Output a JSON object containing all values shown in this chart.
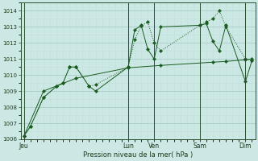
{
  "bg_color": "#cce8e4",
  "grid_color_major": "#aaccc8",
  "grid_color_minor": "#c0deda",
  "line_color": "#1a5c20",
  "xlabel": "Pression niveau de la mer( hPa )",
  "ylim": [
    1006,
    1014.5
  ],
  "yticks": [
    1006,
    1007,
    1008,
    1009,
    1010,
    1011,
    1012,
    1013,
    1014
  ],
  "xtick_labels": [
    "Jeu",
    "Lun",
    "Ven",
    "Sam",
    "Dim"
  ],
  "xtick_pos": [
    0,
    16,
    20,
    27,
    34
  ],
  "vlines_x": [
    0,
    16,
    20,
    27,
    34
  ],
  "xlim": [
    -0.5,
    35.5
  ],
  "series1_x": [
    0,
    1,
    3,
    5,
    6,
    7,
    8,
    10,
    11,
    16,
    17,
    18,
    19,
    20,
    21,
    27,
    28,
    29,
    30,
    31,
    34,
    35
  ],
  "series1_y": [
    1006.2,
    1006.8,
    1008.6,
    1009.3,
    1009.5,
    1010.5,
    1010.5,
    1009.3,
    1009.4,
    1010.5,
    1012.2,
    1013.05,
    1013.3,
    1012.0,
    1011.5,
    1013.1,
    1013.3,
    1013.5,
    1014.0,
    1013.0,
    1011.0,
    1010.9
  ],
  "series2_x": [
    0,
    1,
    3,
    5,
    6,
    7,
    8,
    10,
    11,
    16,
    17,
    18,
    19,
    20,
    21,
    27,
    28,
    29,
    30,
    31,
    34,
    35
  ],
  "series2_y": [
    1006.2,
    1006.8,
    1008.6,
    1009.3,
    1009.5,
    1010.5,
    1010.5,
    1009.3,
    1009.0,
    1010.5,
    1012.8,
    1013.1,
    1011.6,
    1011.0,
    1013.0,
    1013.1,
    1013.2,
    1012.1,
    1011.5,
    1013.1,
    1009.6,
    1010.9
  ],
  "series3_x": [
    0,
    3,
    8,
    16,
    21,
    29,
    31,
    34,
    35
  ],
  "series3_y": [
    1006.2,
    1009.0,
    1009.8,
    1010.45,
    1010.6,
    1010.8,
    1010.85,
    1010.95,
    1011.0
  ],
  "markersize": 2.2
}
